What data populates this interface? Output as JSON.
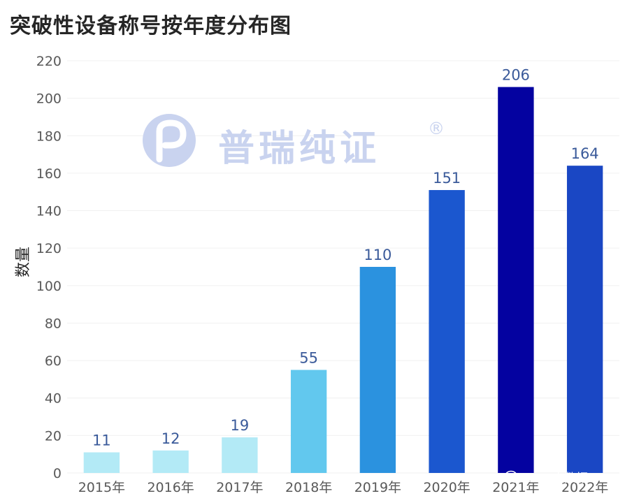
{
  "chart_data": {
    "type": "bar",
    "title": "突破性设备称号按年度分布图",
    "ylabel": "数量",
    "xlabel": "",
    "categories": [
      "2015年",
      "2016年",
      "2017年",
      "2018年",
      "2019年",
      "2020年",
      "2021年",
      "2022年"
    ],
    "values": [
      11,
      12,
      19,
      55,
      110,
      151,
      206,
      164
    ],
    "bar_colors": [
      "#b3eaf6",
      "#b3eaf6",
      "#b3eaf6",
      "#62c8ee",
      "#2b92df",
      "#1b57cf",
      "#0402a0",
      "#1a47c4"
    ],
    "ylim": [
      0,
      220
    ],
    "yticks": [
      0,
      20,
      40,
      60,
      80,
      100,
      120,
      140,
      160,
      180,
      200,
      220
    ],
    "grid": true,
    "legend": "none",
    "data_labels": true
  },
  "watermark": {
    "brand_text": "普瑞纯证",
    "registered": "®",
    "logo_icon": "prui-logo-icon"
  },
  "source": {
    "icon": "wechat-icon",
    "text": "GRIP大数据"
  },
  "colors": {
    "label": "#3a5a9a",
    "watermark": "#c9d3ef"
  }
}
